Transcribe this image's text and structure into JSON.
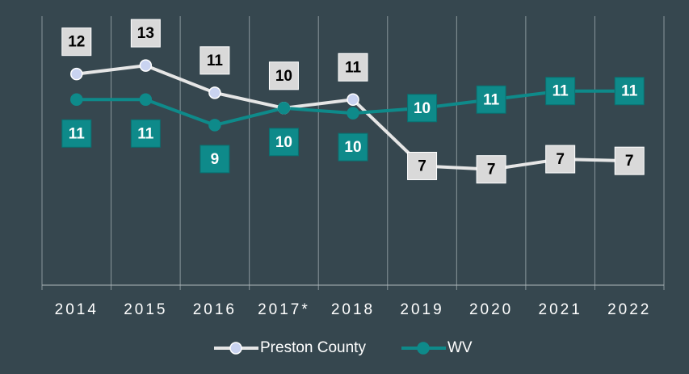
{
  "chart_data": {
    "type": "line",
    "categories": [
      "2014",
      "2015",
      "2016",
      "2017*",
      "2018",
      "2019",
      "2020",
      "2021",
      "2022"
    ],
    "series": [
      {
        "name": "Preston County",
        "color": "#e6e6e6",
        "marker": "#c9d3f0",
        "values": [
          12.4,
          12.9,
          11.3,
          10.4,
          10.9,
          7.0,
          6.8,
          7.4,
          7.3
        ],
        "value_labels": [
          "12",
          "13",
          "11",
          "10",
          "11",
          "7",
          "7",
          "7",
          "7"
        ]
      },
      {
        "name": "WV",
        "color": "#0e8a8a",
        "marker": "#0e8a8a",
        "values": [
          10.9,
          10.9,
          9.4,
          10.4,
          10.1,
          10.4,
          10.9,
          11.4,
          11.4
        ],
        "value_labels": [
          "11",
          "11",
          "9",
          "10",
          "10",
          "10",
          "11",
          "11",
          "11"
        ]
      }
    ],
    "ylim": [
      0,
      15.8
    ]
  }
}
